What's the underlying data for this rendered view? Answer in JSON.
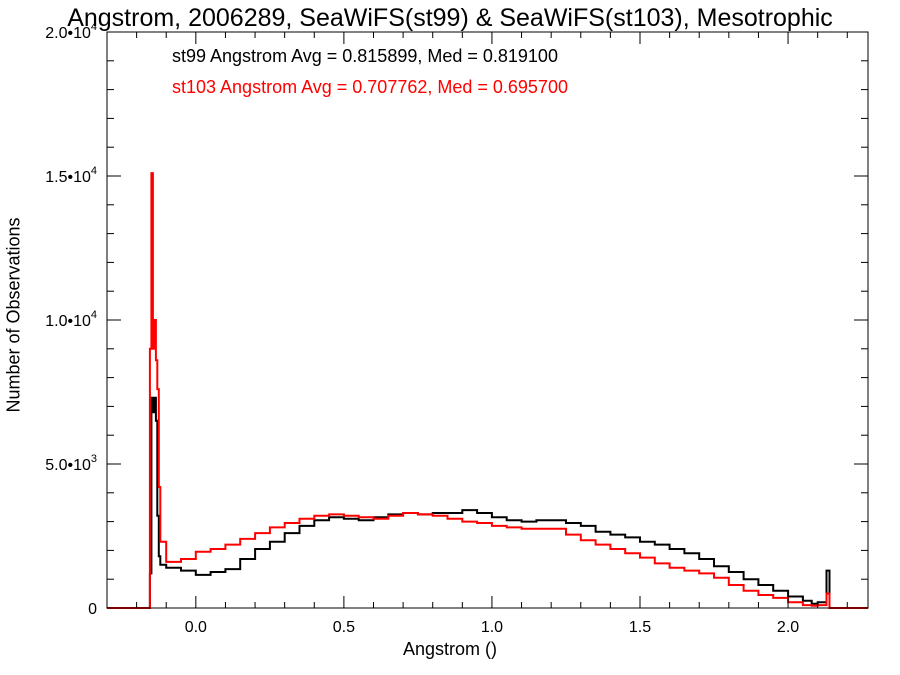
{
  "chart_data": {
    "type": "histogram",
    "title": "Angstrom, 2006289, SeaWiFS(st99) & SeaWiFS(st103), Mesotrophic",
    "xlabel": "Angstrom ()",
    "ylabel": "Number of Observations",
    "xlim": [
      -0.3,
      2.27
    ],
    "ylim": [
      0,
      20000
    ],
    "xticks": [
      0.0,
      0.5,
      1.0,
      1.5,
      2.0
    ],
    "xtick_labels": [
      "0.0",
      "0.5",
      "1.0",
      "1.5",
      "2.0"
    ],
    "yticks": [
      0,
      5000,
      10000,
      15000,
      20000
    ],
    "ytick_labels": [
      {
        "mantissa": "0",
        "exp": ""
      },
      {
        "mantissa": "5.0•10",
        "exp": "3"
      },
      {
        "mantissa": "1.0•10",
        "exp": "4"
      },
      {
        "mantissa": "1.5•10",
        "exp": "4"
      },
      {
        "mantissa": "2.0•10",
        "exp": "4"
      }
    ],
    "annotations": [
      "st99 Angstrom Avg = 0.815899, Med = 0.819100",
      "st103 Angstrom Avg = 0.707762, Med = 0.695700"
    ],
    "series": [
      {
        "key": "st99",
        "color": "#000000",
        "points": [
          [
            -0.3,
            0
          ],
          [
            -0.16,
            0
          ],
          [
            -0.155,
            1200
          ],
          [
            -0.15,
            7300
          ],
          [
            -0.145,
            6800
          ],
          [
            -0.14,
            7300
          ],
          [
            -0.135,
            6500
          ],
          [
            -0.13,
            3200
          ],
          [
            -0.125,
            1800
          ],
          [
            -0.12,
            1500
          ],
          [
            -0.1,
            1400
          ],
          [
            -0.05,
            1300
          ],
          [
            0.0,
            1150
          ],
          [
            0.05,
            1250
          ],
          [
            0.1,
            1350
          ],
          [
            0.15,
            1700
          ],
          [
            0.2,
            2050
          ],
          [
            0.25,
            2300
          ],
          [
            0.3,
            2600
          ],
          [
            0.35,
            2850
          ],
          [
            0.4,
            3050
          ],
          [
            0.45,
            3150
          ],
          [
            0.5,
            3100
          ],
          [
            0.55,
            3050
          ],
          [
            0.6,
            3150
          ],
          [
            0.65,
            3250
          ],
          [
            0.7,
            3300
          ],
          [
            0.75,
            3250
          ],
          [
            0.8,
            3300
          ],
          [
            0.85,
            3300
          ],
          [
            0.9,
            3400
          ],
          [
            0.95,
            3300
          ],
          [
            1.0,
            3150
          ],
          [
            1.05,
            3050
          ],
          [
            1.1,
            3000
          ],
          [
            1.15,
            3050
          ],
          [
            1.2,
            3050
          ],
          [
            1.25,
            2950
          ],
          [
            1.3,
            2850
          ],
          [
            1.35,
            2650
          ],
          [
            1.4,
            2550
          ],
          [
            1.45,
            2450
          ],
          [
            1.5,
            2300
          ],
          [
            1.55,
            2200
          ],
          [
            1.6,
            2050
          ],
          [
            1.65,
            1900
          ],
          [
            1.7,
            1700
          ],
          [
            1.75,
            1450
          ],
          [
            1.8,
            1250
          ],
          [
            1.85,
            1000
          ],
          [
            1.9,
            800
          ],
          [
            1.95,
            600
          ],
          [
            2.0,
            400
          ],
          [
            2.05,
            250
          ],
          [
            2.08,
            150
          ],
          [
            2.1,
            200
          ],
          [
            2.13,
            1300
          ],
          [
            2.14,
            0
          ],
          [
            2.27,
            0
          ]
        ]
      },
      {
        "key": "st103",
        "color": "#ff0000",
        "points": [
          [
            -0.3,
            0
          ],
          [
            -0.16,
            0
          ],
          [
            -0.155,
            9000
          ],
          [
            -0.15,
            15100
          ],
          [
            -0.145,
            9000
          ],
          [
            -0.14,
            10000
          ],
          [
            -0.135,
            8600
          ],
          [
            -0.13,
            7600
          ],
          [
            -0.125,
            4200
          ],
          [
            -0.12,
            2300
          ],
          [
            -0.1,
            1600
          ],
          [
            -0.05,
            1700
          ],
          [
            0.0,
            1950
          ],
          [
            0.05,
            2050
          ],
          [
            0.1,
            2200
          ],
          [
            0.15,
            2400
          ],
          [
            0.2,
            2600
          ],
          [
            0.25,
            2800
          ],
          [
            0.3,
            2950
          ],
          [
            0.35,
            3100
          ],
          [
            0.4,
            3200
          ],
          [
            0.45,
            3250
          ],
          [
            0.5,
            3200
          ],
          [
            0.55,
            3150
          ],
          [
            0.6,
            3100
          ],
          [
            0.65,
            3200
          ],
          [
            0.7,
            3300
          ],
          [
            0.75,
            3250
          ],
          [
            0.8,
            3200
          ],
          [
            0.85,
            3100
          ],
          [
            0.9,
            3000
          ],
          [
            0.95,
            2950
          ],
          [
            1.0,
            2850
          ],
          [
            1.05,
            2800
          ],
          [
            1.1,
            2750
          ],
          [
            1.15,
            2750
          ],
          [
            1.2,
            2750
          ],
          [
            1.25,
            2550
          ],
          [
            1.3,
            2350
          ],
          [
            1.35,
            2200
          ],
          [
            1.4,
            2050
          ],
          [
            1.45,
            1900
          ],
          [
            1.5,
            1750
          ],
          [
            1.55,
            1550
          ],
          [
            1.6,
            1400
          ],
          [
            1.65,
            1300
          ],
          [
            1.7,
            1200
          ],
          [
            1.75,
            1050
          ],
          [
            1.8,
            800
          ],
          [
            1.85,
            600
          ],
          [
            1.9,
            450
          ],
          [
            1.95,
            350
          ],
          [
            2.0,
            200
          ],
          [
            2.05,
            100
          ],
          [
            2.08,
            80
          ],
          [
            2.1,
            100
          ],
          [
            2.13,
            500
          ],
          [
            2.14,
            0
          ],
          [
            2.27,
            0
          ]
        ]
      }
    ]
  }
}
